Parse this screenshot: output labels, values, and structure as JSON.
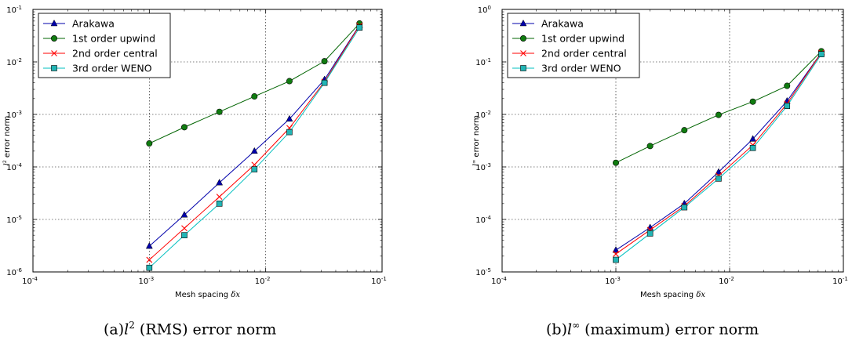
{
  "figure": {
    "captions": [
      {
        "prefix": "(a)",
        "sym": "l",
        "sup": "2",
        "text": " (RMS) error norm"
      },
      {
        "prefix": "(b)",
        "sym": "l",
        "sup": "∞",
        "text": " (maximum) error norm"
      }
    ]
  },
  "chart_data": [
    {
      "type": "line",
      "xscale": "log",
      "yscale": "log",
      "xlim": [
        0.0001,
        0.1
      ],
      "ylim": [
        1e-06,
        0.1
      ],
      "x_ticks": [
        {
          "v": 0.0001,
          "b": "10",
          "e": "-4"
        },
        {
          "v": 0.001,
          "b": "10",
          "e": "-3"
        },
        {
          "v": 0.01,
          "b": "10",
          "e": "-2"
        },
        {
          "v": 0.1,
          "b": "10",
          "e": "-1"
        }
      ],
      "y_ticks": [
        {
          "v": 1e-06,
          "b": "10",
          "e": "-6"
        },
        {
          "v": 1e-05,
          "b": "10",
          "e": "-5"
        },
        {
          "v": 0.0001,
          "b": "10",
          "e": "-4"
        },
        {
          "v": 0.001,
          "b": "10",
          "e": "-3"
        },
        {
          "v": 0.01,
          "b": "10",
          "e": "-2"
        },
        {
          "v": 0.1,
          "b": "10",
          "e": "-1"
        }
      ],
      "xlabel": "Mesh spacing",
      "xlabel_sym": "δx",
      "ylabel_sym": "l",
      "ylabel_sup": "2",
      "ylabel": "error norm",
      "grid": true,
      "legend_position": "top-left",
      "x": [
        0.001,
        0.002,
        0.004,
        0.008,
        0.016,
        0.032,
        0.064
      ],
      "series": [
        {
          "name": "Arakawa",
          "color": "#0000ab",
          "marker": "triangle",
          "values": [
            3.1e-06,
            1.22e-05,
            5e-05,
            0.0002,
            0.00082,
            0.0046,
            0.05
          ]
        },
        {
          "name": "1st order upwind",
          "color": "#006400",
          "marker_fill": "#107c10",
          "marker": "circle",
          "values": [
            0.00028,
            0.00057,
            0.00112,
            0.0022,
            0.0043,
            0.0103,
            0.054
          ]
        },
        {
          "name": "2nd order central",
          "color": "#ff0000",
          "marker": "x",
          "values": [
            1.7e-06,
            6.8e-06,
            2.7e-05,
            0.00011,
            0.00055,
            0.0042,
            0.049
          ]
        },
        {
          "name": "3rd order WENO",
          "color": "#00bfbf",
          "marker_fill": "#22b5b5",
          "marker": "square",
          "values": [
            1.2e-06,
            5e-06,
            2e-05,
            9e-05,
            0.00046,
            0.004,
            0.045
          ]
        }
      ]
    },
    {
      "type": "line",
      "xscale": "log",
      "yscale": "log",
      "xlim": [
        0.0001,
        0.1
      ],
      "ylim": [
        1e-05,
        1
      ],
      "x_ticks": [
        {
          "v": 0.0001,
          "b": "10",
          "e": "-4"
        },
        {
          "v": 0.001,
          "b": "10",
          "e": "-3"
        },
        {
          "v": 0.01,
          "b": "10",
          "e": "-2"
        },
        {
          "v": 0.1,
          "b": "10",
          "e": "-1"
        }
      ],
      "y_ticks": [
        {
          "v": 1e-05,
          "b": "10",
          "e": "-5"
        },
        {
          "v": 0.0001,
          "b": "10",
          "e": "-4"
        },
        {
          "v": 0.001,
          "b": "10",
          "e": "-3"
        },
        {
          "v": 0.01,
          "b": "10",
          "e": "-2"
        },
        {
          "v": 0.1,
          "b": "10",
          "e": "-1"
        },
        {
          "v": 1,
          "b": "10",
          "e": "0"
        }
      ],
      "xlabel": "Mesh spacing",
      "xlabel_sym": "δx",
      "ylabel_sym": "l",
      "ylabel_sup": "∞",
      "ylabel": "error norm",
      "grid": true,
      "legend_position": "top-left",
      "x": [
        0.001,
        0.002,
        0.004,
        0.008,
        0.016,
        0.032,
        0.064
      ],
      "series": [
        {
          "name": "Arakawa",
          "color": "#0000ab",
          "marker": "triangle",
          "values": [
            2.6e-05,
            7e-05,
            0.0002,
            0.0008,
            0.0034,
            0.018,
            0.15
          ]
        },
        {
          "name": "1st order upwind",
          "color": "#006400",
          "marker_fill": "#107c10",
          "marker": "circle",
          "values": [
            0.0012,
            0.0025,
            0.005,
            0.0098,
            0.0175,
            0.035,
            0.16
          ]
        },
        {
          "name": "2nd order central",
          "color": "#ff0000",
          "marker": "x",
          "values": [
            2.2e-05,
            6.3e-05,
            0.00018,
            0.00068,
            0.0026,
            0.016,
            0.15
          ]
        },
        {
          "name": "3rd order WENO",
          "color": "#00bfbf",
          "marker_fill": "#22b5b5",
          "marker": "square",
          "values": [
            1.7e-05,
            5.4e-05,
            0.00017,
            0.0006,
            0.0023,
            0.0145,
            0.14
          ]
        }
      ]
    }
  ]
}
